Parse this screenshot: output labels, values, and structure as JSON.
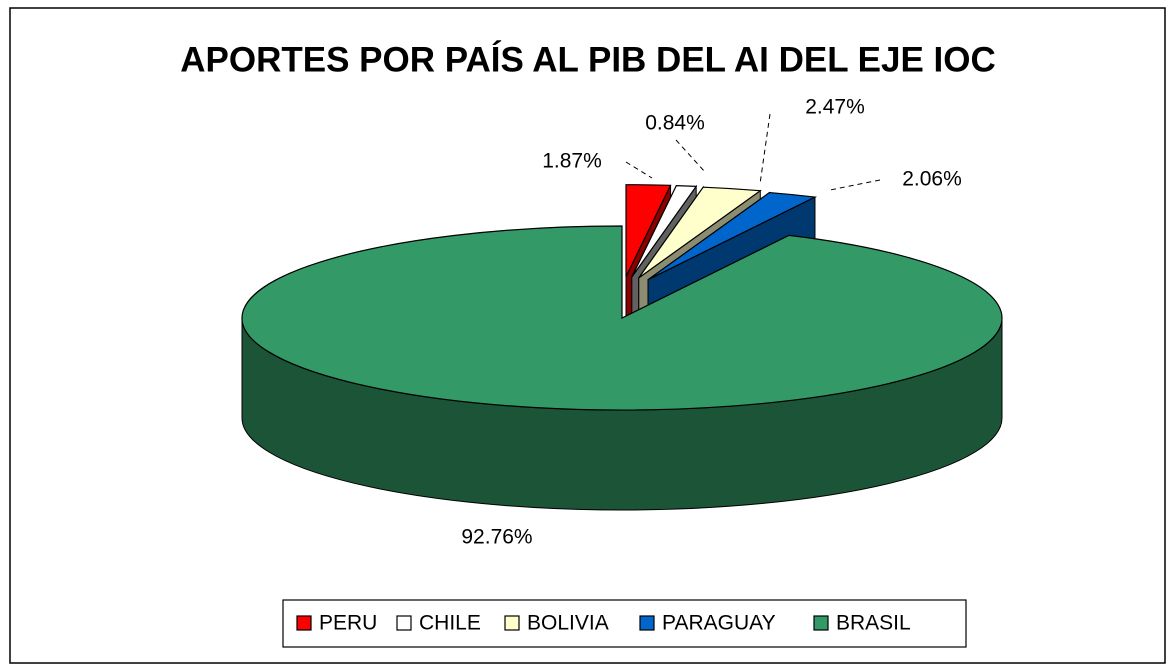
{
  "chart_data": {
    "type": "pie3d",
    "title": "APORTES POR PAÍS AL PIB DEL AI DEL EJE IOC",
    "categories": [
      "PERU",
      "CHILE",
      "BOLIVIA",
      "PARAGUAY",
      "BRASIL"
    ],
    "values": [
      1.87,
      0.84,
      2.47,
      2.06,
      92.76
    ],
    "value_labels": [
      "1.87%",
      "0.84%",
      "2.47%",
      "2.06%",
      "92.76%"
    ],
    "colors": [
      "#ff0000",
      "#ffffff",
      "#ffffcc",
      "#0066cc",
      "#339966"
    ],
    "legend": "bottom"
  }
}
